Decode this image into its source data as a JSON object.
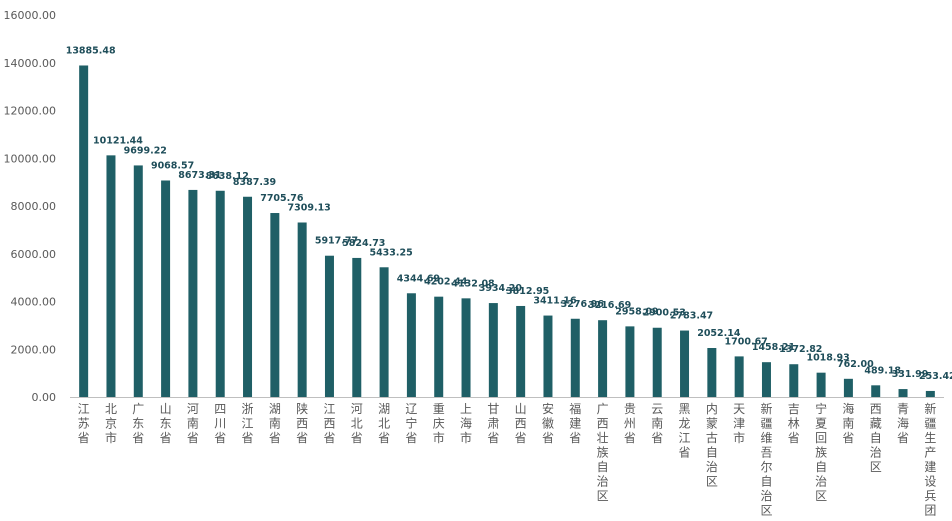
{
  "chart_data": {
    "type": "bar",
    "title": "",
    "xlabel": "",
    "ylabel": "",
    "ylim": [
      0,
      16000
    ],
    "yticks": [
      "0.00",
      "2000.00",
      "4000.00",
      "6000.00",
      "8000.00",
      "10000.00",
      "12000.00",
      "14000.00",
      "16000.00"
    ],
    "grid": false,
    "bar_color": "#1f5f66",
    "categories": [
      "江苏省",
      "北京市",
      "广东省",
      "山东省",
      "河南省",
      "四川省",
      "浙江省",
      "湖南省",
      "陕西省",
      "江西省",
      "河北省",
      "湖北省",
      "辽宁省",
      "重庆市",
      "上海市",
      "甘肃省",
      "山西省",
      "安徽省",
      "福建省",
      "广西壮族自治区",
      "贵州省",
      "云南省",
      "黑龙江省",
      "内蒙古自治区",
      "天津市",
      "新疆维吾尔自治区",
      "吉林省",
      "宁夏回族自治区",
      "海南省",
      "西藏自治区",
      "青海省",
      "新疆生产建设兵团"
    ],
    "values": [
      13885.48,
      10121.44,
      9699.22,
      9068.57,
      8673.31,
      8638.12,
      8387.39,
      7705.76,
      7309.13,
      5917.77,
      5824.73,
      5433.25,
      4344.69,
      4202.44,
      4132.08,
      3934.2,
      3812.95,
      3411.16,
      3276.96,
      3216.69,
      2958.09,
      2900.53,
      2783.47,
      2052.14,
      1700.67,
      1458.21,
      1372.82,
      1018.93,
      762.0,
      489.18,
      331.99,
      253.42
    ],
    "value_labels": [
      "13885.48",
      "10121.44",
      "9699.22",
      "9068.57",
      "8673.31",
      "8638.12",
      "8387.39",
      "7705.76",
      "7309.13",
      "5917.77",
      "5824.73",
      "5433.25",
      "4344.69",
      "4202.44",
      "4132.08",
      "3934.20",
      "3812.95",
      "3411.16",
      "3276.96",
      "3216.69",
      "2958.09",
      "2900.53",
      "2783.47",
      "2052.14",
      "1700.67",
      "1458.21",
      "1372.82",
      "1018.93",
      "762.00",
      "489.18",
      "331.99",
      "253.42"
    ]
  }
}
